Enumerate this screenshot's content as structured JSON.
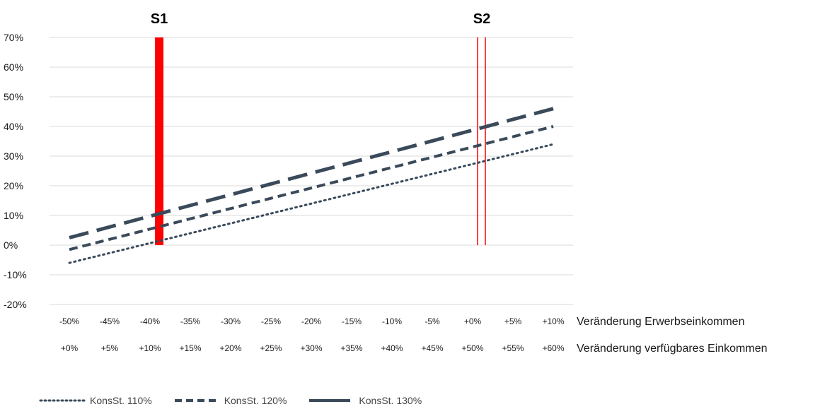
{
  "chart_data": {
    "type": "line",
    "y_ticks": [
      "70%",
      "60%",
      "50%",
      "40%",
      "30%",
      "20%",
      "10%",
      "0%",
      "-10%",
      "-20%"
    ],
    "ylim": [
      -20,
      70
    ],
    "x_row1": [
      "-50%",
      "-45%",
      "-40%",
      "-35%",
      "-30%",
      "-25%",
      "-20%",
      "-15%",
      "-10%",
      "-5%",
      "+0%",
      "+5%",
      "+10%"
    ],
    "x_row2": [
      "+0%",
      "+5%",
      "+10%",
      "+15%",
      "+20%",
      "+25%",
      "+30%",
      "+35%",
      "+40%",
      "+45%",
      "+50%",
      "+55%",
      "+60%"
    ],
    "x_row1_label": "Veränderung Erwerbseinkommen",
    "x_row2_label": "Veränderung verfügbares Einkommen",
    "series": [
      {
        "name": "KonsSt. 110%",
        "start": -6,
        "end": 34,
        "style": "dotted"
      },
      {
        "name": "KonsSt. 120%",
        "start": -1.5,
        "end": 40,
        "style": "dashed"
      },
      {
        "name": "KonsSt. 130%",
        "start": 2.5,
        "end": 46,
        "style": "longdash"
      }
    ],
    "markers": [
      {
        "label": "S1",
        "x_index": 2,
        "style": "solid-bar"
      },
      {
        "label": "S2",
        "x_index": 10,
        "style": "double-line"
      }
    ],
    "colors": {
      "series": "#3a4a5a",
      "marker": "#ff0000",
      "grid": "#d9d9d9"
    }
  }
}
